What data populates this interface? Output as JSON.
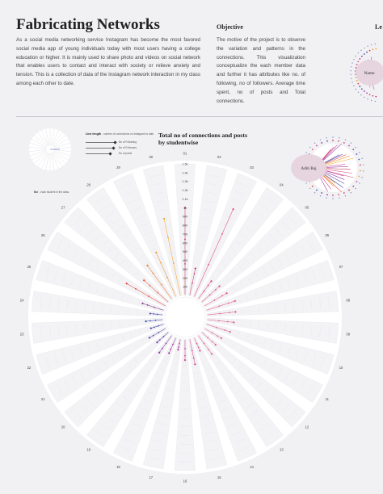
{
  "header": {
    "title": "Fabricating Networks",
    "intro": "As a social media networking service Instagram has become the most favored social media app of young individuals today with most users having a college education or higher. It is mainly used to share photo and videos on social network that enables users to contact and interact with society or relieve anxiety and tension. This is a collection of data of the Instagram network interaction in my class among each other to date.",
    "objective_heading": "Objective",
    "objective_text": "The motive of the project is to observe the variation and patterns in the connections. This visualization conceptualize the each member data and further it has attributes like no. of following, no of followers. Average time spent, no of posts and Total connections.",
    "legend_heading": "Le"
  },
  "legend": {
    "sample_name": "Name",
    "example_name": "Aditi Raj"
  },
  "key": {
    "title": "Line length",
    "title_note": "- number of connections on instagram to date",
    "rows": [
      "No of Following",
      "No of Followers",
      "No of posts"
    ],
    "note_bold": "Bar",
    "note_text": "- each student in the class"
  },
  "chart_data": {
    "type": "radial_bar",
    "title": "Total no of connections  and posts by studentwise",
    "radial_ticks": [
      "100",
      "200",
      "300",
      "400",
      "500",
      "600",
      "700",
      "800",
      "900",
      "1k",
      "1.1k",
      "1.2k",
      "1.3k",
      "1.4k",
      "1.5k"
    ],
    "radial_max": 1500,
    "students": [
      {
        "id": "01",
        "total": 1000,
        "color": "#c0335a",
        "marks": [
          360,
          640,
          1000
        ]
      },
      {
        "id": "02",
        "total": 320,
        "color": "#cf3968",
        "marks": [
          150,
          260,
          320
        ]
      },
      {
        "id": "03",
        "total": 1100,
        "color": "#df4a7a",
        "marks": [
          410,
          790,
          1100
        ]
      },
      {
        "id": "04",
        "total": 260,
        "color": "#e04a7c",
        "marks": [
          120,
          200,
          260
        ]
      },
      {
        "id": "05",
        "total": 280,
        "color": "#e0527f",
        "marks": [
          130,
          220,
          280
        ]
      },
      {
        "id": "06",
        "total": 300,
        "color": "#e15a82",
        "marks": [
          140,
          240,
          300
        ]
      },
      {
        "id": "07",
        "total": 350,
        "color": "#e05c84",
        "marks": [
          160,
          270,
          350
        ]
      },
      {
        "id": "08",
        "total": 330,
        "color": "#e06088",
        "marks": [
          150,
          260,
          330
        ]
      },
      {
        "id": "09",
        "total": 310,
        "color": "#e0608a",
        "marks": [
          140,
          240,
          310
        ]
      },
      {
        "id": "10",
        "total": 290,
        "color": "#e0628b",
        "marks": [
          130,
          230,
          290
        ]
      },
      {
        "id": "11",
        "total": 230,
        "color": "#e0628c",
        "marks": [
          110,
          180,
          230
        ]
      },
      {
        "id": "12",
        "total": 220,
        "color": "#df638d",
        "marks": [
          100,
          170,
          220
        ]
      },
      {
        "id": "13",
        "total": 270,
        "color": "#df648e",
        "marks": [
          120,
          210,
          270
        ]
      },
      {
        "id": "14",
        "total": 170,
        "color": "#dc5590",
        "marks": [
          80,
          130,
          170
        ]
      },
      {
        "id": "15",
        "total": 300,
        "color": "#d64a92",
        "marks": [
          140,
          230,
          300
        ]
      },
      {
        "id": "16",
        "total": 240,
        "color": "#cc4094",
        "marks": [
          110,
          190,
          240
        ]
      },
      {
        "id": "17",
        "total": 130,
        "color": "#b83a98",
        "marks": [
          60,
          100,
          130
        ]
      },
      {
        "id": "18",
        "total": 200,
        "color": "#a2389c",
        "marks": [
          90,
          150,
          200
        ]
      },
      {
        "id": "19",
        "total": 250,
        "color": "#8a3aa0",
        "marks": [
          120,
          190,
          250
        ]
      },
      {
        "id": "20",
        "total": 180,
        "color": "#7040a4",
        "marks": [
          80,
          140,
          180
        ]
      },
      {
        "id": "21",
        "total": 220,
        "color": "#5a48a8",
        "marks": [
          100,
          170,
          220
        ]
      },
      {
        "id": "22",
        "total": 160,
        "color": "#4c4caa",
        "marks": [
          70,
          120,
          160
        ]
      },
      {
        "id": "23",
        "total": 200,
        "color": "#3f4fab",
        "marks": [
          90,
          150,
          200
        ]
      },
      {
        "id": "24",
        "total": 150,
        "color": "#5050b0",
        "marks": [
          70,
          110,
          150
        ]
      },
      {
        "id": "25",
        "total": 260,
        "color": "#8c3c86",
        "marks": [
          120,
          200,
          260
        ]
      },
      {
        "id": "26",
        "total": 520,
        "color": "#e6403c",
        "marks": [
          230,
          400,
          520
        ]
      },
      {
        "id": "27",
        "total": 380,
        "color": "#e45a3a",
        "marks": [
          170,
          290,
          380
        ]
      },
      {
        "id": "28",
        "total": 480,
        "color": "#ec7e2e",
        "marks": [
          210,
          370,
          480
        ]
      },
      {
        "id": "29",
        "total": 560,
        "color": "#f0962a",
        "marks": [
          250,
          430,
          560
        ]
      },
      {
        "id": "30",
        "total": 900,
        "color": "#f5a623",
        "marks": [
          380,
          680,
          900
        ]
      }
    ]
  }
}
